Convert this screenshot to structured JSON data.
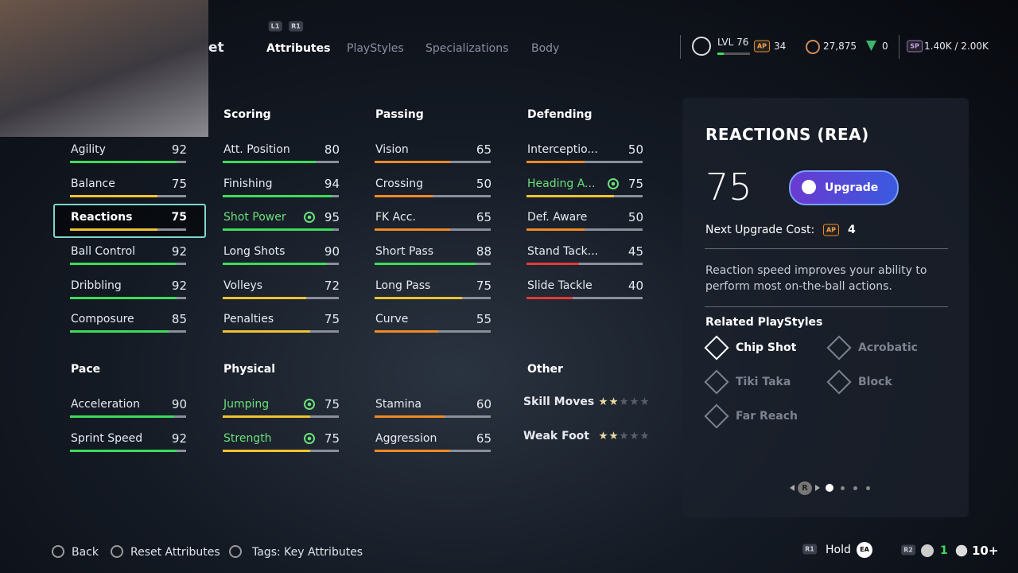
{
  "header": {
    "title": "et",
    "shoulder_buttons": [
      "L1",
      "R1"
    ],
    "tabs": [
      {
        "label": "Attributes",
        "active": true
      },
      {
        "label": "PlayStyles",
        "active": false
      },
      {
        "label": "Specializations",
        "active": false
      },
      {
        "label": "Body",
        "active": false
      }
    ]
  },
  "status": {
    "level": "LVL 76",
    "ap_badge": "AP",
    "ap": "34",
    "coins": "27,875",
    "points": "0",
    "sp_badge": "SP",
    "sp": "1.40K / 2.00K"
  },
  "groups": [
    {
      "items": [
        {
          "name": "Agility",
          "value": 92
        },
        {
          "name": "Balance",
          "value": 75
        },
        {
          "name": "Reactions",
          "value": 75,
          "selected": true
        },
        {
          "name": "Ball Control",
          "value": 92
        },
        {
          "name": "Dribbling",
          "value": 92
        },
        {
          "name": "Composure",
          "value": 85
        }
      ]
    },
    {
      "title": "Scoring",
      "items": [
        {
          "name": "Att. Position",
          "value": 80
        },
        {
          "name": "Finishing",
          "value": 94
        },
        {
          "name": "Shot Power",
          "value": 95,
          "playstyle": true
        },
        {
          "name": "Long Shots",
          "value": 90
        },
        {
          "name": "Volleys",
          "value": 72
        },
        {
          "name": "Penalties",
          "value": 75
        }
      ]
    },
    {
      "title": "Passing",
      "items": [
        {
          "name": "Vision",
          "value": 65
        },
        {
          "name": "Crossing",
          "value": 50
        },
        {
          "name": "FK Acc.",
          "value": 65
        },
        {
          "name": "Short Pass",
          "value": 88
        },
        {
          "name": "Long Pass",
          "value": 75
        },
        {
          "name": "Curve",
          "value": 55
        }
      ]
    },
    {
      "title": "Defending",
      "items": [
        {
          "name": "Interceptio...",
          "value": 50
        },
        {
          "name": "Heading A...",
          "value": 75,
          "playstyle": true
        },
        {
          "name": "Def. Aware",
          "value": 50
        },
        {
          "name": "Stand Tack...",
          "value": 45
        },
        {
          "name": "Slide Tackle",
          "value": 40
        }
      ]
    },
    {
      "title": "Pace",
      "items": [
        {
          "name": "Acceleration",
          "value": 90
        },
        {
          "name": "Sprint Speed",
          "value": 92
        }
      ]
    },
    {
      "title": "Physical",
      "items": [
        {
          "name": "Jumping",
          "value": 75,
          "playstyle": true
        },
        {
          "name": "Strength",
          "value": 75,
          "playstyle": true
        },
        {
          "name": "Stamina",
          "value": 60
        },
        {
          "name": "Aggression",
          "value": 65
        }
      ]
    },
    {
      "title": "Other",
      "items": [
        {
          "name": "Skill Moves",
          "stars": 2,
          "max_stars": 5
        },
        {
          "name": "Weak Foot",
          "stars": 2,
          "max_stars": 5
        }
      ]
    }
  ],
  "detail": {
    "title": "REACTIONS (REA)",
    "value": 75,
    "button": "Upgrade",
    "cost_label": "Next Upgrade Cost:",
    "cost_badge": "AP",
    "cost": 4,
    "description": "Reaction speed improves your ability to perform most on-the-ball actions.",
    "playstyles_title": "Related PlayStyles",
    "playstyles": [
      {
        "name": "Chip Shot",
        "active": true
      },
      {
        "name": "Acrobatic",
        "active": false
      },
      {
        "name": "Tiki Taka",
        "active": false
      },
      {
        "name": "Block",
        "active": false
      },
      {
        "name": "Far Reach",
        "active": false
      }
    ],
    "pager_button": "R",
    "pages": 4,
    "current_page": 0
  },
  "footer": {
    "hints": [
      "Back",
      "Reset Attributes",
      "Tags: Key Attributes"
    ],
    "r1": "R1",
    "hold": "Hold",
    "ea": "EA",
    "r2": "R2",
    "count": "1",
    "players": "10+"
  }
}
